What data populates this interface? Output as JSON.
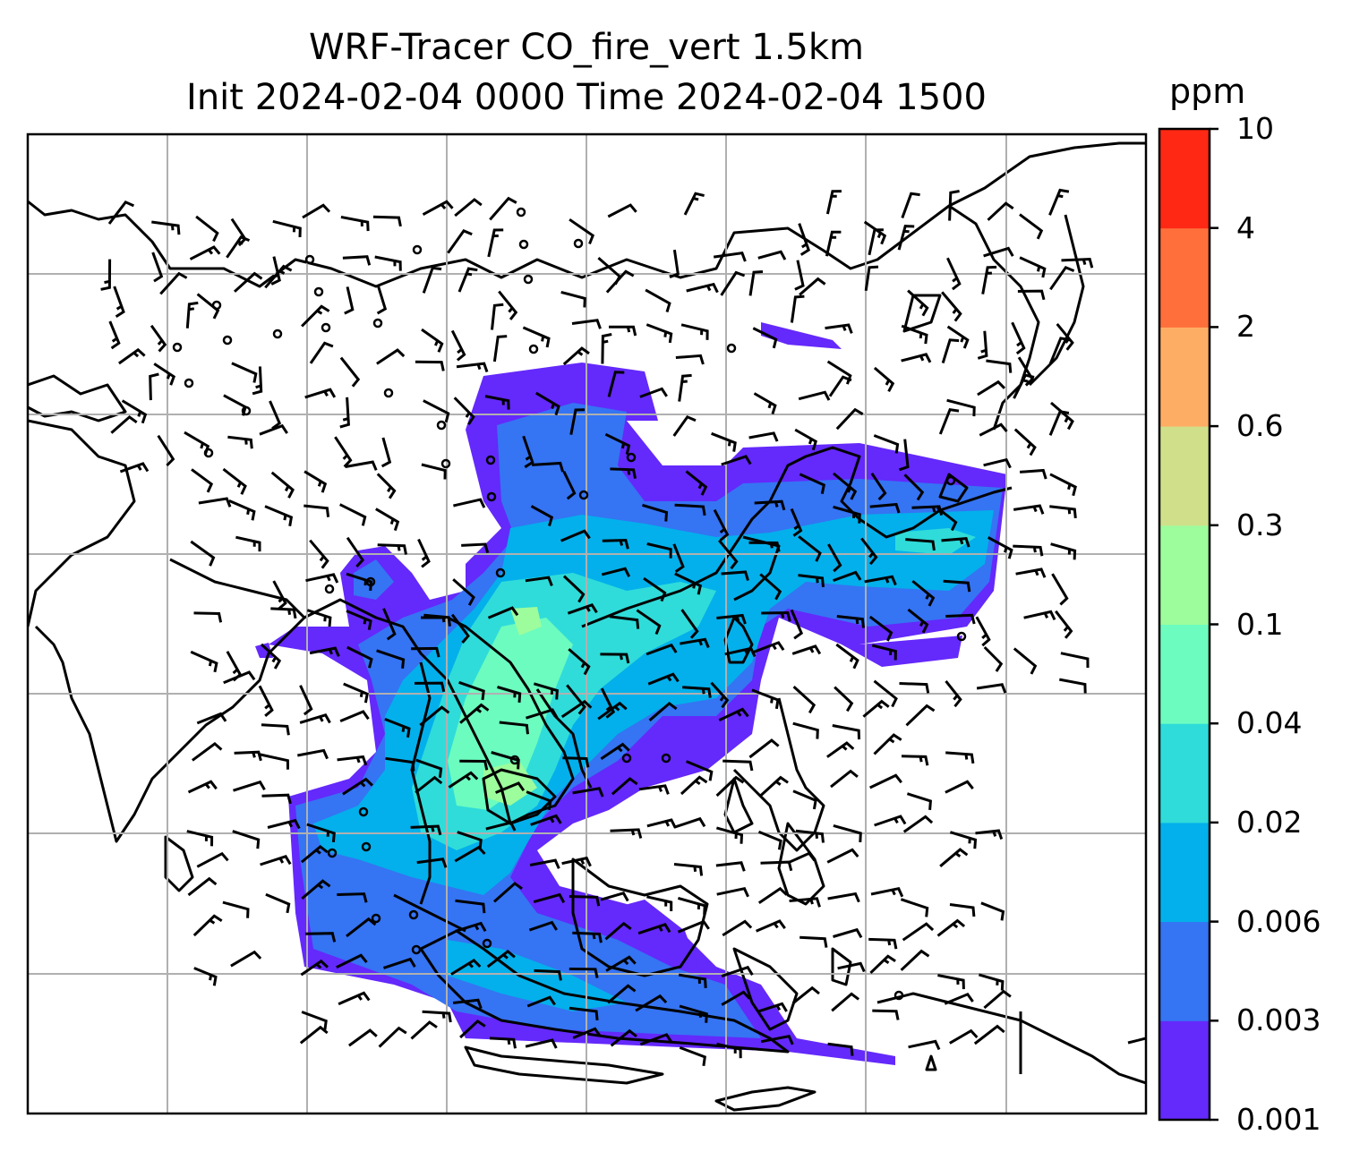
{
  "title": {
    "line1": "WRF-Tracer CO_fire_vert 1.5km",
    "line2": "Init 2024-02-04 0000 Time 2024-02-04 1500"
  },
  "colorbar": {
    "unit": "ppm",
    "ticks": [
      "0.001",
      "0.003",
      "0.006",
      "0.02",
      "0.04",
      "0.1",
      "0.3",
      "0.6",
      "2",
      "4",
      "10"
    ],
    "colors": [
      "#6429fb",
      "#3574f3",
      "#03b0eb",
      "#2fdcd9",
      "#6cfcbf",
      "#9dfc9c",
      "#d0e08a",
      "#fdae64",
      "#fe6f3b",
      "#fe2814"
    ]
  },
  "map": {
    "fill_levels": [
      {
        "level": "0.001",
        "color": "#6429fb"
      },
      {
        "level": "0.003",
        "color": "#3574f3"
      },
      {
        "level": "0.006",
        "color": "#03b0eb"
      },
      {
        "level": "0.02",
        "color": "#2fdcd9"
      },
      {
        "level": "0.04",
        "color": "#6cfcbf"
      },
      {
        "level": "0.1",
        "color": "#9dfc9c"
      }
    ],
    "layers": [
      "co-tracer-fill",
      "coastlines",
      "graticule",
      "wind-barbs"
    ]
  }
}
